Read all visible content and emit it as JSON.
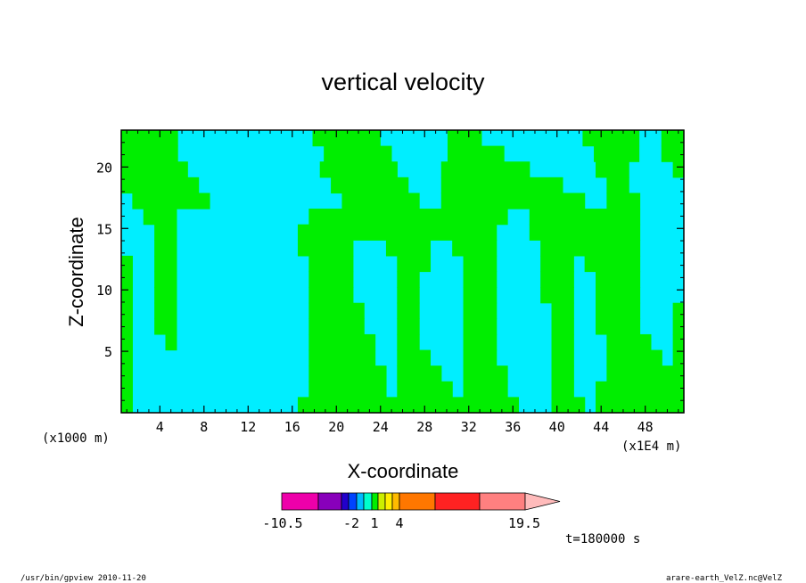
{
  "chart_data": {
    "type": "heatmap",
    "title": "vertical velocity",
    "xlabel": "X-coordinate",
    "ylabel": "Z-coordinate",
    "x_unit_left": "(x1000 m)",
    "x_unit_right": "(x1E4 m)",
    "xlim": [
      0.5,
      51.5
    ],
    "ylim": [
      0,
      23
    ],
    "x_ticks": [
      4,
      8,
      12,
      16,
      20,
      24,
      28,
      32,
      36,
      40,
      44,
      48
    ],
    "y_ticks": [
      5,
      10,
      15,
      20
    ],
    "time_label": "t=180000 s",
    "palette": {
      "cyan": "#00eeff",
      "green": "#00ee00"
    },
    "cells_note": "",
    "grid_rows": [
      "GGGGGCCCCCCCCCCCCGGGGGGCCCCCCGGGCCCCCCCCCGGGGGCCGG",
      "GGGGGCCCCCCCCCCCCCGGGGGGCCCCCGGGGGCCCCCCCCGGGGCCGG",
      "GGGGGGCCCCCCCCCCCCGGGGGGGCCCCGGGGGGGGCCCCCCGGGCCCCG",
      "GGGGGGGCCCCCCCCCCCCGGGGGGGCCCGGGGGGGGGGGCCCCGGCCCCC",
      "CGGGGGGGCCCCCCCCCCCCGGGGGGGCCGGGGGGGGGGGGGCCGGGCCCC",
      "CCGGGCCCCCCCCCCCCGGGGGGGGGGGGGGGGGGCCGGGGGGGGGGCCCC",
      "CCCGGCCCCCCCCCCCGGGGGGGGGGGGGGGGGGCCCGGGGGGGGGGCCCC",
      "CCCGGCCCCCCCCCCCGGGGGCCCGGGGCCGGGGCCCCGGGGGGGGGCCCC",
      "GCCGGCCCCCCCCCCCCGGGGCCCCGGGCCCGGGCCCCGGGCGGGGGCCCC",
      "GCCGGCCCCCCCCCCCCGGGGCCCCGGCCCCGGGCCCCGGGCCGGGGCCCC",
      "GCCGGCCCCCCCCCCCCGGGGCCCCGGCCCCGGGCCCCGGGCCGGGGCCCC",
      "GCCGGCCCCCCCCCCCCGGGGGCCCGGCCCCGGGCCCCCGGCCGGGGCCCG",
      "GCCGGCCCCCCCCCCCCGGGGGCCCGGCCCCGGGCCCCCGGCCGGGGCCCG",
      "GCCCGCCCCCCCCCCCCGGGGGGCCGGCCCCGGGCCCCCGGCCCGGGGCCG",
      "GCCCCCCCCCCCCCCCCGGGGGGCCGGGCCCGGGCCCCCGGCCCGGGGGCG",
      "GCCCCCCCCCCCCCCCCGGGGGGGCGGGGCCGGGGCCCCGGCCCGGGGGGG",
      "GCCCCCCCCCCCCCCCCGGGGGGGCGGGGGCGGGGCCCCGGCCGGGGGGGG",
      "GCCCCCCCCCCCCCCCGGGGGGGGGGGGGGGGGGGGCCCGGGCGGGGGGGG"
    ]
  },
  "colorbar": {
    "colors": [
      "#ee00aa",
      "#8800bb",
      "#2200cc",
      "#0044ff",
      "#00bbff",
      "#00ffcc",
      "#00ee00",
      "#ccee00",
      "#ffee00",
      "#ffbb00",
      "#ff7700",
      "#ff2222",
      "#ff8080",
      "#ffbbbb"
    ],
    "labels": [
      "-10.5",
      "-2",
      "1",
      "4",
      "19.5"
    ]
  },
  "footer": {
    "left": "/usr/bin/gpview   2010-11-20",
    "right": "arare-earth_VelZ.nc@VelZ"
  }
}
